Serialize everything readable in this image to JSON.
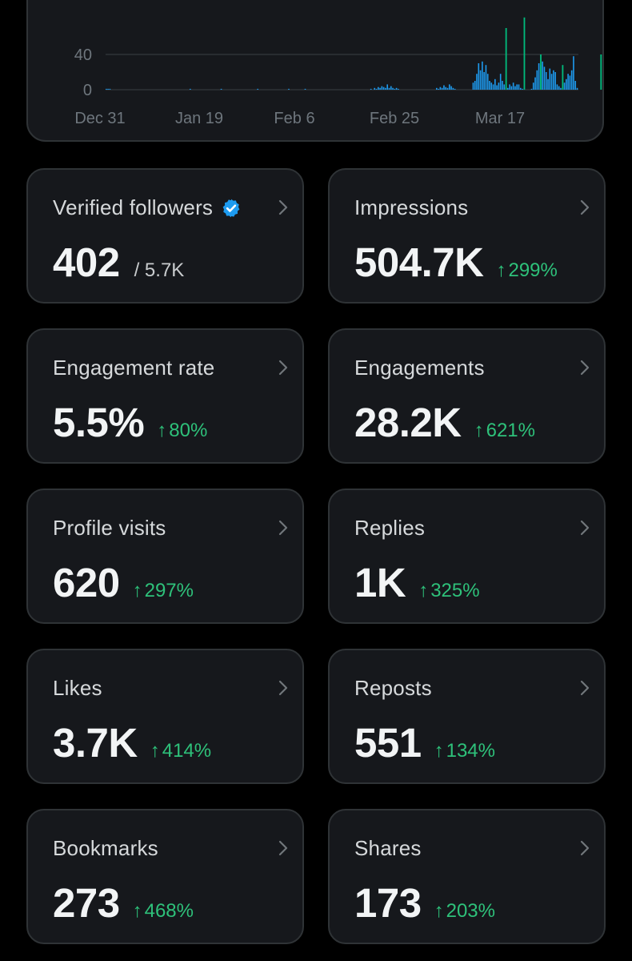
{
  "chart_data": {
    "type": "bar",
    "title": "",
    "xlabel": "",
    "ylabel": "",
    "y_ticks": [
      "0",
      "40"
    ],
    "x_ticks": [
      "Dec 31",
      "Jan 19",
      "Feb 6",
      "Feb 25",
      "Mar 17"
    ],
    "ylim": [
      0,
      80
    ],
    "color_primary": "#1d9bf0",
    "color_secondary": "#00ba7c",
    "series": [
      {
        "values": [
          1,
          1,
          1,
          0,
          0,
          0,
          0,
          0,
          0,
          0,
          0,
          0,
          0,
          0,
          0,
          0,
          0,
          0,
          0,
          0,
          0,
          0,
          0,
          0,
          0,
          0,
          0,
          0,
          0,
          0,
          0,
          0,
          0,
          0,
          0,
          0,
          0,
          0,
          0,
          0,
          0,
          0,
          0,
          0,
          0,
          0,
          1,
          0,
          0,
          0,
          0,
          0,
          0,
          0,
          0,
          0,
          0,
          0,
          0,
          0,
          0,
          0,
          0,
          1,
          0,
          0,
          0,
          0,
          0,
          0,
          0,
          0,
          0,
          0,
          0,
          0,
          0,
          0,
          0,
          0,
          0,
          0,
          0,
          1,
          0,
          0,
          0,
          0,
          0,
          0,
          0,
          0,
          0,
          0,
          0,
          0,
          0,
          0,
          0,
          0,
          1,
          0,
          0,
          0,
          0,
          0,
          0,
          0,
          0,
          1,
          0,
          0,
          0,
          0,
          0,
          0,
          0,
          0,
          0,
          0,
          0,
          0,
          0,
          0,
          0,
          0,
          0,
          0,
          0,
          0,
          0,
          0,
          0,
          0,
          0,
          0,
          0,
          0,
          0,
          0,
          0,
          0,
          0,
          0,
          0,
          1,
          0,
          2,
          1,
          3,
          2,
          4,
          3,
          2,
          6,
          2,
          4,
          2,
          1,
          2,
          1,
          0,
          0,
          0,
          0,
          0,
          0,
          0,
          0,
          0,
          0,
          0,
          0,
          0,
          0,
          0,
          0,
          0,
          0,
          0,
          0,
          2,
          1,
          3,
          2,
          5,
          3,
          2,
          6,
          4,
          2,
          1,
          0,
          0,
          0,
          0,
          0,
          0,
          0,
          0,
          0,
          8,
          10,
          18,
          30,
          22,
          32,
          20,
          28,
          18,
          10,
          8,
          6,
          12,
          5,
          8,
          18,
          10,
          6,
          3,
          2,
          6,
          4,
          8,
          4,
          6,
          6,
          2,
          1,
          0,
          0,
          0,
          0,
          1,
          8,
          14,
          22,
          30,
          28,
          32,
          26,
          20,
          12,
          24,
          18,
          22,
          20,
          6,
          4,
          2,
          2,
          8,
          12,
          18,
          16,
          22,
          38,
          10,
          2
        ]
      },
      {
        "values": [
          0,
          0,
          0,
          0,
          0,
          0,
          0,
          0,
          0,
          0,
          0,
          0,
          0,
          0,
          0,
          0,
          0,
          0,
          0,
          0,
          0,
          0,
          0,
          0,
          0,
          0,
          0,
          0,
          0,
          0,
          0,
          0,
          0,
          0,
          0,
          0,
          0,
          0,
          0,
          0,
          0,
          0,
          0,
          0,
          0,
          0,
          0,
          0,
          0,
          0,
          0,
          0,
          0,
          0,
          0,
          0,
          0,
          0,
          0,
          0,
          0,
          0,
          0,
          0,
          0,
          0,
          0,
          0,
          0,
          0,
          0,
          0,
          0,
          0,
          0,
          0,
          0,
          0,
          0,
          0,
          0,
          0,
          0,
          0,
          0,
          0,
          0,
          0,
          0,
          0,
          0,
          0,
          0,
          0,
          0,
          0,
          0,
          0,
          0,
          0,
          0,
          0,
          0,
          0,
          0,
          0,
          0,
          0,
          0,
          0,
          0,
          0,
          0,
          0,
          0,
          0,
          0,
          0,
          0,
          0,
          0,
          0,
          0,
          0,
          0,
          0,
          0,
          0,
          0,
          0,
          0,
          0,
          0,
          0,
          0,
          0,
          0,
          0,
          0,
          0,
          0,
          0,
          0,
          0,
          0,
          0,
          0,
          0,
          0,
          0,
          0,
          0,
          0,
          0,
          0,
          0,
          0,
          0,
          0,
          0,
          0,
          0,
          0,
          0,
          0,
          0,
          0,
          0,
          0,
          0,
          0,
          0,
          0,
          0,
          0,
          0,
          0,
          0,
          0,
          0,
          0,
          0,
          0,
          0,
          0,
          0,
          0,
          0,
          0,
          0,
          0,
          0,
          0,
          0,
          0,
          0,
          0,
          0,
          0,
          0,
          0,
          0,
          0,
          0,
          0,
          0,
          0,
          0,
          0,
          0,
          0,
          0,
          0,
          0,
          0,
          0,
          0,
          0,
          0,
          0,
          0,
          0,
          0,
          0,
          0,
          0,
          0,
          0,
          0,
          0,
          0,
          0,
          0,
          0,
          0,
          0,
          0,
          0,
          0,
          0,
          0,
          0,
          0,
          0,
          0,
          0,
          0,
          0,
          0,
          0,
          0,
          0,
          0,
          0,
          0,
          0,
          0,
          0,
          0,
          0,
          0,
          0,
          0,
          0,
          0,
          0,
          0,
          0,
          0,
          0,
          0,
          0,
          0,
          0,
          0,
          0,
          0,
          0,
          0,
          0,
          0,
          0,
          0,
          0
        ]
      }
    ],
    "highlights": [
      {
        "index": 219,
        "value": 70
      },
      {
        "index": 229,
        "value": 82
      },
      {
        "index": 238,
        "value": 40
      },
      {
        "index": 250,
        "value": 28
      },
      {
        "index": 271,
        "value": 40
      },
      {
        "index": 276,
        "value": 92
      }
    ],
    "grid": true
  },
  "cards": [
    {
      "title": "Verified followers",
      "value": "402",
      "secondary": "/ 5.7K",
      "delta": "",
      "verified": true
    },
    {
      "title": "Impressions",
      "value": "504.7K",
      "secondary": "",
      "delta": "299%"
    },
    {
      "title": "Engagement rate",
      "value": "5.5%",
      "secondary": "",
      "delta": "80%"
    },
    {
      "title": "Engagements",
      "value": "28.2K",
      "secondary": "",
      "delta": "621%"
    },
    {
      "title": "Profile visits",
      "value": "620",
      "secondary": "",
      "delta": "297%"
    },
    {
      "title": "Replies",
      "value": "1K",
      "secondary": "",
      "delta": "325%"
    },
    {
      "title": "Likes",
      "value": "3.7K",
      "secondary": "",
      "delta": "414%"
    },
    {
      "title": "Reposts",
      "value": "551",
      "secondary": "",
      "delta": "134%"
    },
    {
      "title": "Bookmarks",
      "value": "273",
      "secondary": "",
      "delta": "468%"
    },
    {
      "title": "Shares",
      "value": "173",
      "secondary": "",
      "delta": "203%"
    }
  ],
  "icons": {
    "verified": "verified-badge-icon",
    "chevron": "chevron-right-icon",
    "arrow": "↑"
  },
  "colors": {
    "background": "#000000",
    "card": "#16181c",
    "border": "#2f3336",
    "delta_green": "#2ec17a",
    "verified_blue": "#1d9bf0"
  }
}
